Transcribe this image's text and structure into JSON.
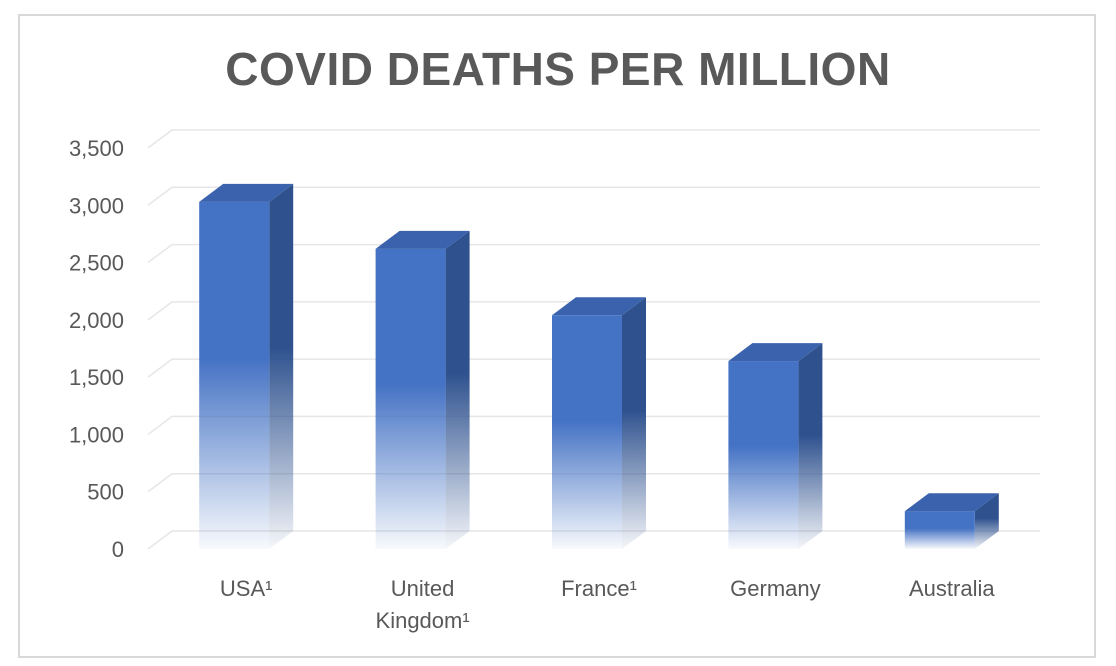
{
  "chart_data": {
    "type": "bar",
    "title": "COVID DEATHS PER MILLION",
    "categories": [
      "USA¹",
      "United Kingdom¹",
      "France¹",
      "Germany",
      "Australia"
    ],
    "category_lines": [
      [
        "USA¹"
      ],
      [
        "United",
        "Kingdom¹"
      ],
      [
        "France¹"
      ],
      [
        "Germany"
      ],
      [
        "Australia"
      ]
    ],
    "values": [
      3030,
      2620,
      2040,
      1640,
      330
    ],
    "ylim": [
      0,
      3500
    ],
    "yticks": [
      0,
      500,
      1000,
      1500,
      2000,
      2500,
      3000,
      3500
    ],
    "ytick_labels": [
      "0",
      "500",
      "1,000",
      "1,500",
      "2,000",
      "2,500",
      "3,000",
      "3,500"
    ],
    "grid": true,
    "legend": "none",
    "colors": {
      "bar_front": "#4472c4",
      "bar_side": "#2f528f",
      "bar_top": "#3a62ad",
      "grid": "#e6e6e6",
      "text": "#595959"
    }
  }
}
